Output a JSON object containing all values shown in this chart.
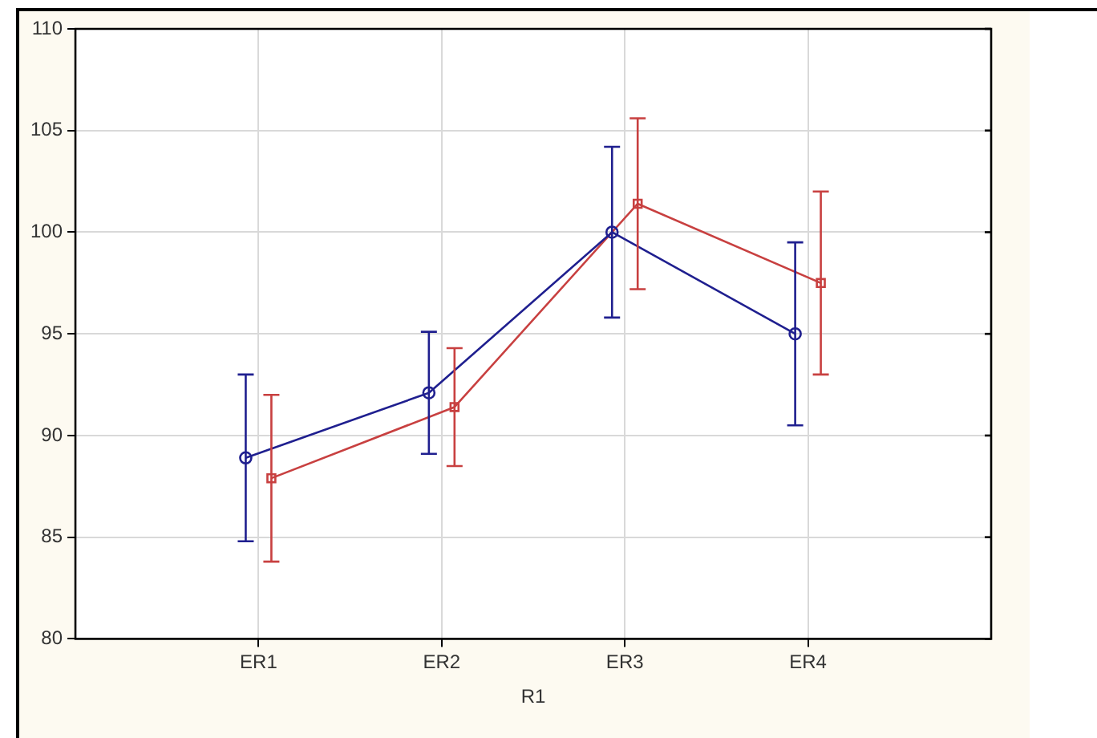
{
  "chart_data": {
    "type": "line",
    "xlabel": "R1",
    "categories": [
      "ER1",
      "ER2",
      "ER3",
      "ER4"
    ],
    "ylim": [
      80,
      110
    ],
    "yticks": [
      80,
      85,
      90,
      95,
      100,
      105,
      110
    ],
    "grid": true,
    "line_style": "solid",
    "series": [
      {
        "color": "#1f1f8f",
        "marker": "circle",
        "values": [
          88.9,
          92.1,
          100,
          95
        ],
        "errors": [
          4.1,
          3.0,
          4.2,
          4.5
        ]
      },
      {
        "color": "#c84040",
        "marker": "square",
        "values": [
          87.9,
          91.4,
          101.4,
          97.5
        ],
        "errors": [
          4.1,
          2.9,
          4.2,
          4.5
        ]
      }
    ]
  }
}
